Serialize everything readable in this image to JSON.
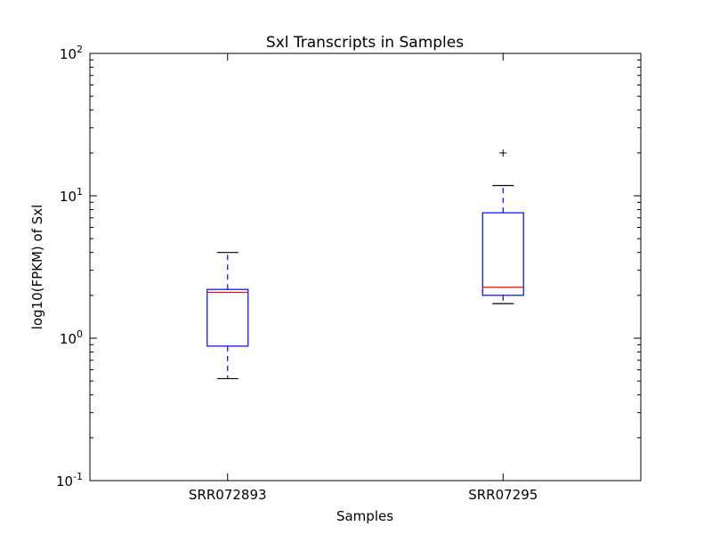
{
  "chart_data": {
    "type": "box",
    "title": "Sxl Transcripts in Samples",
    "xlabel": "Samples",
    "ylabel": "log10(FPKM) of Sxl",
    "yscale": "log",
    "ylim": [
      0.1,
      100
    ],
    "y_major_ticks": [
      {
        "base": "10",
        "exp": "-1",
        "value": 0.1
      },
      {
        "base": "10",
        "exp": "0",
        "value": 1
      },
      {
        "base": "10",
        "exp": "1",
        "value": 10
      },
      {
        "base": "10",
        "exp": "2",
        "value": 100
      }
    ],
    "grid": false,
    "legend": "none",
    "colors": {
      "box": "#0000ff",
      "median": "#ff0000",
      "whisker": "#0000ff",
      "cap": "#000000",
      "flier": "#000000"
    },
    "categories": [
      "SRR072893",
      "SRR07295"
    ],
    "boxes": [
      {
        "name": "SRR072893",
        "whisker_low": 0.52,
        "q1": 0.88,
        "median": 2.1,
        "q3": 2.2,
        "whisker_high": 4.0,
        "fliers": []
      },
      {
        "name": "SRR07295",
        "whisker_low": 1.75,
        "q1": 2.0,
        "median": 2.28,
        "q3": 7.6,
        "whisker_high": 11.8,
        "fliers": [
          20
        ]
      }
    ]
  }
}
